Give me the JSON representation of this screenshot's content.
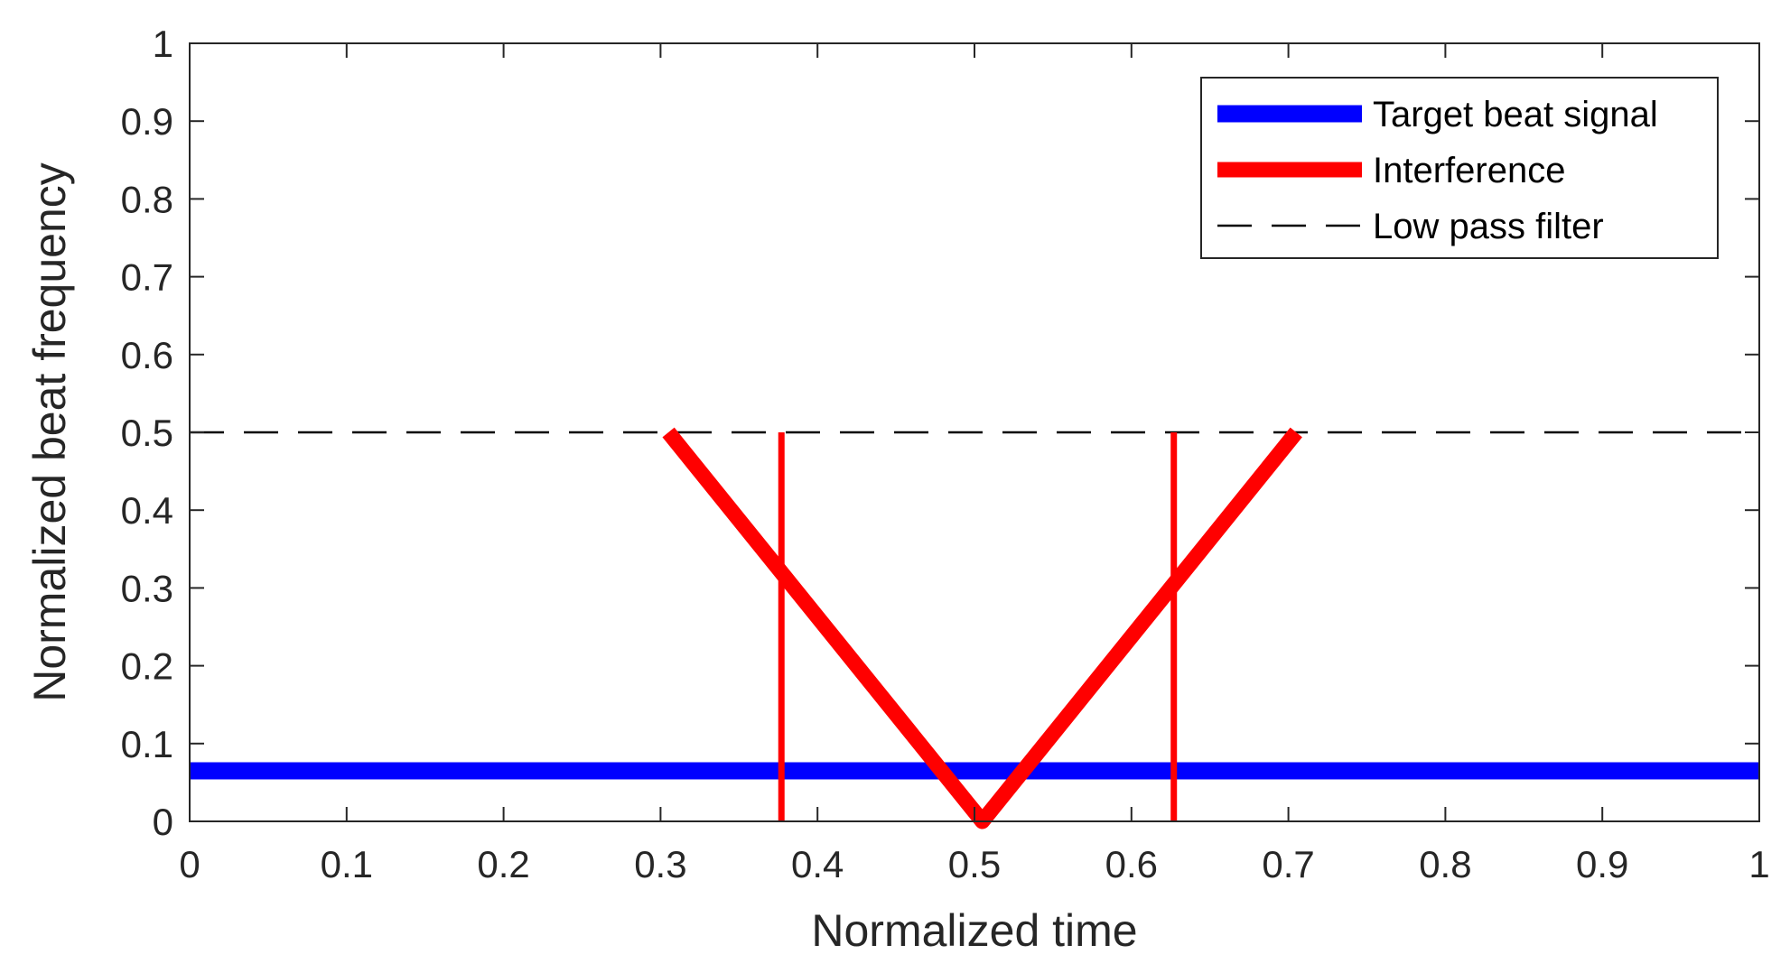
{
  "chart_data": {
    "type": "line",
    "title": "",
    "xlabel": "Normalized time",
    "ylabel": "Normalized beat frequency",
    "xlim": [
      0,
      1
    ],
    "ylim": [
      0,
      1
    ],
    "xticks": [
      "0",
      "0.1",
      "0.2",
      "0.3",
      "0.4",
      "0.5",
      "0.6",
      "0.7",
      "0.8",
      "0.9",
      "1"
    ],
    "yticks": [
      "0",
      "0.1",
      "0.2",
      "0.3",
      "0.4",
      "0.5",
      "0.6",
      "0.7",
      "0.8",
      "0.9",
      "1"
    ],
    "grid": false,
    "legend_position": "top-right",
    "series": [
      {
        "name": "Target beat signal",
        "color": "#0000ff",
        "style": "solid-thick",
        "x": [
          0,
          1
        ],
        "y": [
          0.065,
          0.065
        ]
      },
      {
        "name": "Interference",
        "color": "#ff0000",
        "style": "solid-thick",
        "x": [
          0.305,
          0.505,
          0.705
        ],
        "y": [
          0.5,
          0,
          0.5
        ]
      },
      {
        "name": "Low pass filter",
        "color": "#000000",
        "style": "dashed",
        "x": [
          0,
          1
        ],
        "y": [
          0.5,
          0.5
        ]
      }
    ],
    "vertical_markers": {
      "color": "#ff0000",
      "x": [
        0.377,
        0.627
      ],
      "y_range": [
        0,
        0.5
      ]
    }
  }
}
